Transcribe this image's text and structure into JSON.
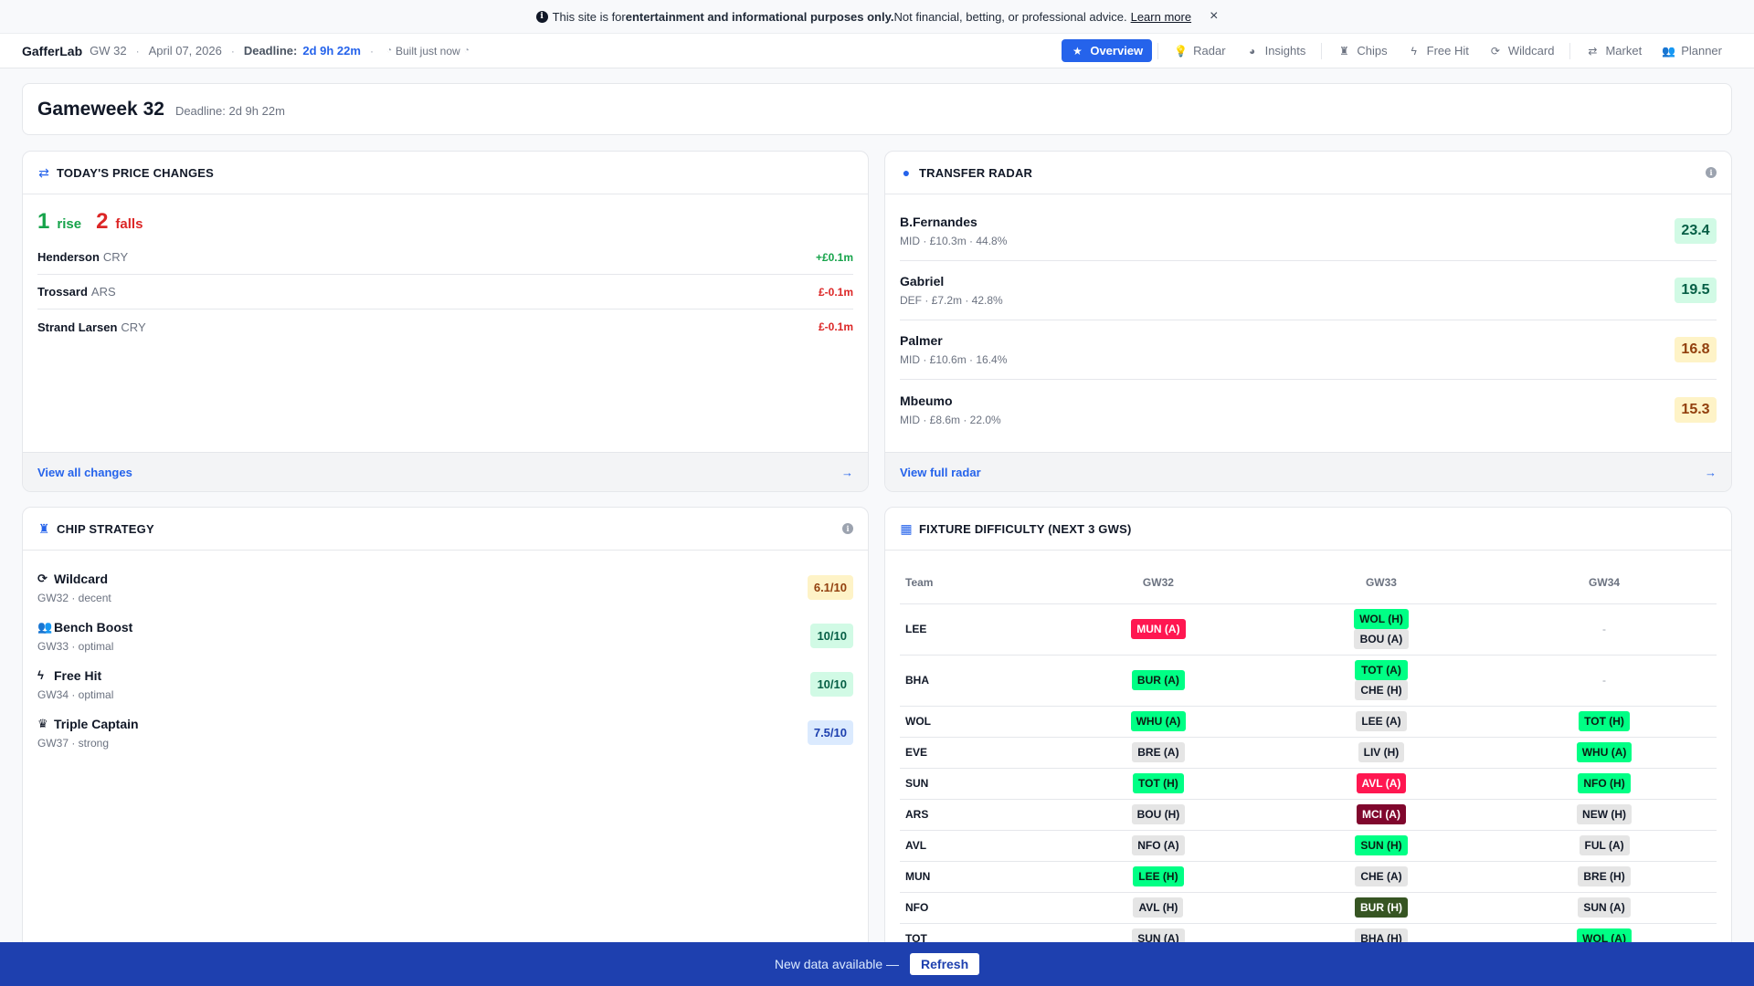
{
  "banner": {
    "prefix": "This site is for ",
    "bold": "entertainment and informational purposes only.",
    "suffix": " Not financial, betting, or professional advice.",
    "link": "Learn more",
    "close": "×"
  },
  "header": {
    "brand": "GafferLab",
    "gw": "GW 32",
    "date": "April 07, 2026",
    "deadline_label": "Deadline:",
    "deadline_value": "2d 9h 22m",
    "built": "Built just now",
    "nav": [
      {
        "label": "Overview",
        "icon": "star-icon",
        "glyph": "★",
        "active": true
      },
      {
        "label": "Radar",
        "icon": "lightbulb-icon",
        "glyph": "💡"
      },
      {
        "label": "Insights",
        "icon": "pie-chart-icon",
        "glyph": "◕"
      },
      {
        "label": "Chips",
        "icon": "chess-icon",
        "glyph": "♜"
      },
      {
        "label": "Free Hit",
        "icon": "bolt-icon",
        "glyph": "ϟ"
      },
      {
        "label": "Wildcard",
        "icon": "refresh-icon",
        "glyph": "⟳"
      },
      {
        "label": "Market",
        "icon": "exchange-icon",
        "glyph": "⇄"
      },
      {
        "label": "Planner",
        "icon": "people-icon",
        "glyph": "👥"
      }
    ]
  },
  "gameweek": {
    "title": "Gameweek 32",
    "deadline": "Deadline: 2d 9h 22m"
  },
  "price_changes": {
    "title": "TODAY'S PRICE CHANGES",
    "rises_count": "1",
    "rises_label": "rise",
    "falls_count": "2",
    "falls_label": "falls",
    "rows": [
      {
        "name": "Henderson",
        "team": "CRY",
        "change": "+£0.1m",
        "dir": "up"
      },
      {
        "name": "Trossard",
        "team": "ARS",
        "change": "£-0.1m",
        "dir": "down"
      },
      {
        "name": "Strand Larsen",
        "team": "CRY",
        "change": "£-0.1m",
        "dir": "down"
      }
    ],
    "footer_link": "View all changes",
    "footer_arrow": "→"
  },
  "transfer_radar": {
    "title": "TRANSFER RADAR",
    "players": [
      {
        "name": "B.Fernandes",
        "meta": "MID · £10.3m · 44.8%",
        "score": "23.4",
        "tier": "good"
      },
      {
        "name": "Gabriel",
        "meta": "DEF · £7.2m · 42.8%",
        "score": "19.5",
        "tier": "good"
      },
      {
        "name": "Palmer",
        "meta": "MID · £10.6m · 16.4%",
        "score": "16.8",
        "tier": "ok"
      },
      {
        "name": "Mbeumo",
        "meta": "MID · £8.6m · 22.0%",
        "score": "15.3",
        "tier": "ok"
      }
    ],
    "footer_link": "View full radar",
    "footer_arrow": "→"
  },
  "chip_strategy": {
    "title": "CHIP STRATEGY",
    "chips": [
      {
        "name": "Wildcard",
        "icon": "refresh-icon",
        "glyph": "⟳",
        "sub": "GW32 · decent",
        "rating": "6.1/10",
        "tier": "ok"
      },
      {
        "name": "Bench Boost",
        "icon": "users-icon",
        "glyph": "👥",
        "sub": "GW33 · optimal",
        "rating": "10/10",
        "tier": "good"
      },
      {
        "name": "Free Hit",
        "icon": "bolt-icon",
        "glyph": "ϟ",
        "sub": "GW34 · optimal",
        "rating": "10/10",
        "tier": "good"
      },
      {
        "name": "Triple Captain",
        "icon": "crown-icon",
        "glyph": "♛",
        "sub": "GW37 · strong",
        "rating": "7.5/10",
        "tier": "blue"
      }
    ]
  },
  "fixtures": {
    "title": "FIXTURE DIFFICULTY (NEXT 3 GWS)",
    "columns": [
      "Team",
      "GW32",
      "GW33",
      "GW34"
    ],
    "empty": "-",
    "rows": [
      {
        "team": "LEE",
        "gw32": [
          {
            "t": "MUN (A)",
            "d": 4
          }
        ],
        "gw33": [
          {
            "t": "WOL (H)",
            "d": 2
          },
          {
            "t": "BOU (A)",
            "d": 3
          }
        ],
        "gw34": []
      },
      {
        "team": "BHA",
        "gw32": [
          {
            "t": "BUR (A)",
            "d": 2
          }
        ],
        "gw33": [
          {
            "t": "TOT (A)",
            "d": 2
          },
          {
            "t": "CHE (H)",
            "d": 3
          }
        ],
        "gw34": []
      },
      {
        "team": "WOL",
        "gw32": [
          {
            "t": "WHU (A)",
            "d": 2
          }
        ],
        "gw33": [
          {
            "t": "LEE (A)",
            "d": 3
          }
        ],
        "gw34": [
          {
            "t": "TOT (H)",
            "d": 2
          }
        ]
      },
      {
        "team": "EVE",
        "gw32": [
          {
            "t": "BRE (A)",
            "d": 3
          }
        ],
        "gw33": [
          {
            "t": "LIV (H)",
            "d": 3
          }
        ],
        "gw34": [
          {
            "t": "WHU (A)",
            "d": 2
          }
        ]
      },
      {
        "team": "SUN",
        "gw32": [
          {
            "t": "TOT (H)",
            "d": 2
          }
        ],
        "gw33": [
          {
            "t": "AVL (A)",
            "d": 4
          }
        ],
        "gw34": [
          {
            "t": "NFO (H)",
            "d": 2
          }
        ]
      },
      {
        "team": "ARS",
        "gw32": [
          {
            "t": "BOU (H)",
            "d": 3
          }
        ],
        "gw33": [
          {
            "t": "MCI (A)",
            "d": 5
          }
        ],
        "gw34": [
          {
            "t": "NEW (H)",
            "d": 3
          }
        ]
      },
      {
        "team": "AVL",
        "gw32": [
          {
            "t": "NFO (A)",
            "d": 3
          }
        ],
        "gw33": [
          {
            "t": "SUN (H)",
            "d": 2
          }
        ],
        "gw34": [
          {
            "t": "FUL (A)",
            "d": 3
          }
        ]
      },
      {
        "team": "MUN",
        "gw32": [
          {
            "t": "LEE (H)",
            "d": 2
          }
        ],
        "gw33": [
          {
            "t": "CHE (A)",
            "d": 3
          }
        ],
        "gw34": [
          {
            "t": "BRE (H)",
            "d": 3
          }
        ]
      },
      {
        "team": "NFO",
        "gw32": [
          {
            "t": "AVL (H)",
            "d": 3
          }
        ],
        "gw33": [
          {
            "t": "BUR (H)",
            "d": 0
          }
        ],
        "gw34": [
          {
            "t": "SUN (A)",
            "d": 3
          }
        ]
      },
      {
        "team": "TOT",
        "gw32": [
          {
            "t": "SUN (A)",
            "d": 3
          }
        ],
        "gw33": [
          {
            "t": "BHA (H)",
            "d": 3
          }
        ],
        "gw34": [
          {
            "t": "WOL (A)",
            "d": 2
          }
        ]
      }
    ]
  },
  "update_bar": {
    "message": "New data available —",
    "button": "Refresh"
  },
  "colors": {
    "accent": "#2563eb",
    "update_bar": "#1e40af",
    "rise": "#16a34a",
    "fall": "#dc2626"
  }
}
